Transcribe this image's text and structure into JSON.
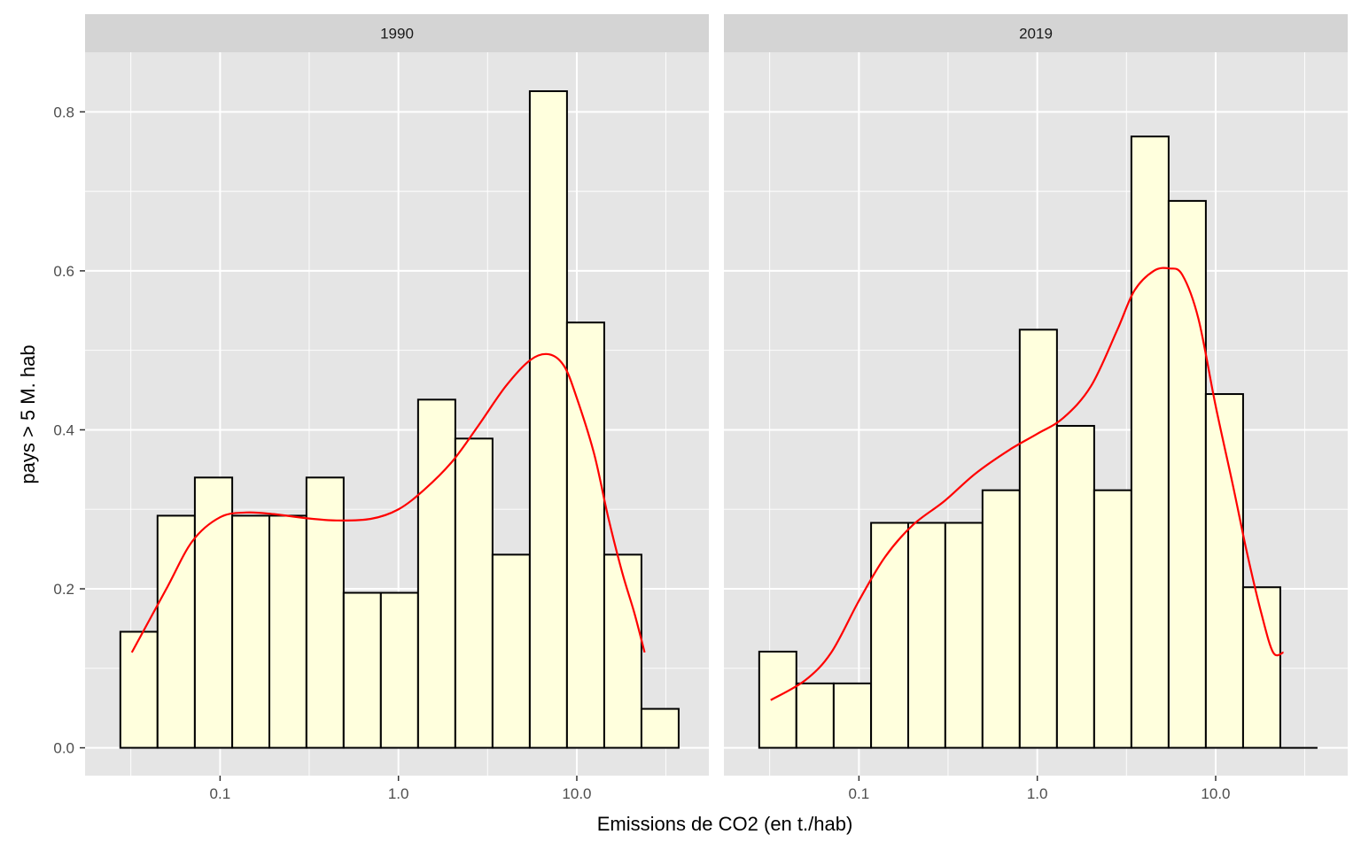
{
  "chart_data": {
    "type": "bar",
    "xlabel": "Emissions de CO2 (en t./hab)",
    "ylabel": "pays > 5 M. hab",
    "x_scale": "log10",
    "xlim": [
      0.0175,
      55
    ],
    "ylim": [
      -0.035,
      0.875
    ],
    "x_ticks": [
      {
        "value": 0.1,
        "label": "0.1"
      },
      {
        "value": 1,
        "label": "1.0"
      },
      {
        "value": 10,
        "label": "10.0"
      }
    ],
    "x_minor_ticks": [
      0.0316,
      0.316,
      3.16,
      31.6
    ],
    "y_ticks": [
      {
        "value": 0.0,
        "label": "0.0"
      },
      {
        "value": 0.2,
        "label": "0.2"
      },
      {
        "value": 0.4,
        "label": "0.4"
      },
      {
        "value": 0.6,
        "label": "0.6"
      },
      {
        "value": 0.8,
        "label": "0.8"
      }
    ],
    "y_minor_ticks": [
      0.1,
      0.3,
      0.5,
      0.7
    ],
    "grid": true,
    "colors": {
      "bar_fill": "#ffffdd",
      "bar_stroke": "#000000",
      "density_line": "#ff0000",
      "panel_bg": "#e5e5e5",
      "strip_bg": "#d4d4d4",
      "grid": "#ffffff"
    },
    "panels": [
      {
        "strip": "1990",
        "bins": {
          "edges": [
            0.0276,
            0.0446,
            0.0722,
            0.117,
            0.189,
            0.305,
            0.493,
            0.797,
            1.289,
            2.084,
            3.37,
            5.45,
            8.81,
            14.25,
            23.04,
            37.25
          ],
          "values": [
            0.146,
            0.292,
            0.34,
            0.292,
            0.292,
            0.34,
            0.195,
            0.195,
            0.438,
            0.389,
            0.243,
            0.826,
            0.535,
            0.243,
            0.049
          ]
        },
        "density": {
          "x": [
            0.032,
            0.05,
            0.07,
            0.1,
            0.14,
            0.2,
            0.3,
            0.45,
            0.7,
            1.0,
            1.4,
            2.0,
            2.8,
            4.0,
            5.5,
            7.0,
            8.5,
            10.0,
            12.5,
            15.0,
            18.0,
            21.0,
            24.0
          ],
          "y": [
            0.12,
            0.2,
            0.26,
            0.29,
            0.296,
            0.294,
            0.289,
            0.286,
            0.288,
            0.3,
            0.325,
            0.36,
            0.405,
            0.455,
            0.488,
            0.495,
            0.48,
            0.44,
            0.37,
            0.29,
            0.22,
            0.17,
            0.12
          ]
        }
      },
      {
        "strip": "2019",
        "bins": {
          "edges": [
            0.0276,
            0.0446,
            0.0722,
            0.117,
            0.189,
            0.305,
            0.493,
            0.797,
            1.289,
            2.084,
            3.37,
            5.45,
            8.81,
            14.25,
            23.04,
            37.25
          ],
          "values": [
            0.121,
            0.081,
            0.081,
            0.283,
            0.283,
            0.283,
            0.324,
            0.526,
            0.405,
            0.324,
            0.769,
            0.688,
            0.445,
            0.202,
            0.0
          ]
        },
        "density": {
          "x": [
            0.032,
            0.05,
            0.07,
            0.1,
            0.14,
            0.2,
            0.3,
            0.45,
            0.7,
            1.0,
            1.4,
            2.0,
            2.8,
            3.5,
            4.5,
            5.5,
            6.5,
            8.0,
            10.0,
            12.5,
            15.0,
            18.0,
            21.0,
            24.0
          ],
          "y": [
            0.06,
            0.085,
            0.12,
            0.185,
            0.24,
            0.28,
            0.31,
            0.345,
            0.375,
            0.395,
            0.415,
            0.455,
            0.525,
            0.575,
            0.6,
            0.603,
            0.595,
            0.54,
            0.43,
            0.33,
            0.245,
            0.17,
            0.12,
            0.12
          ]
        }
      }
    ]
  }
}
